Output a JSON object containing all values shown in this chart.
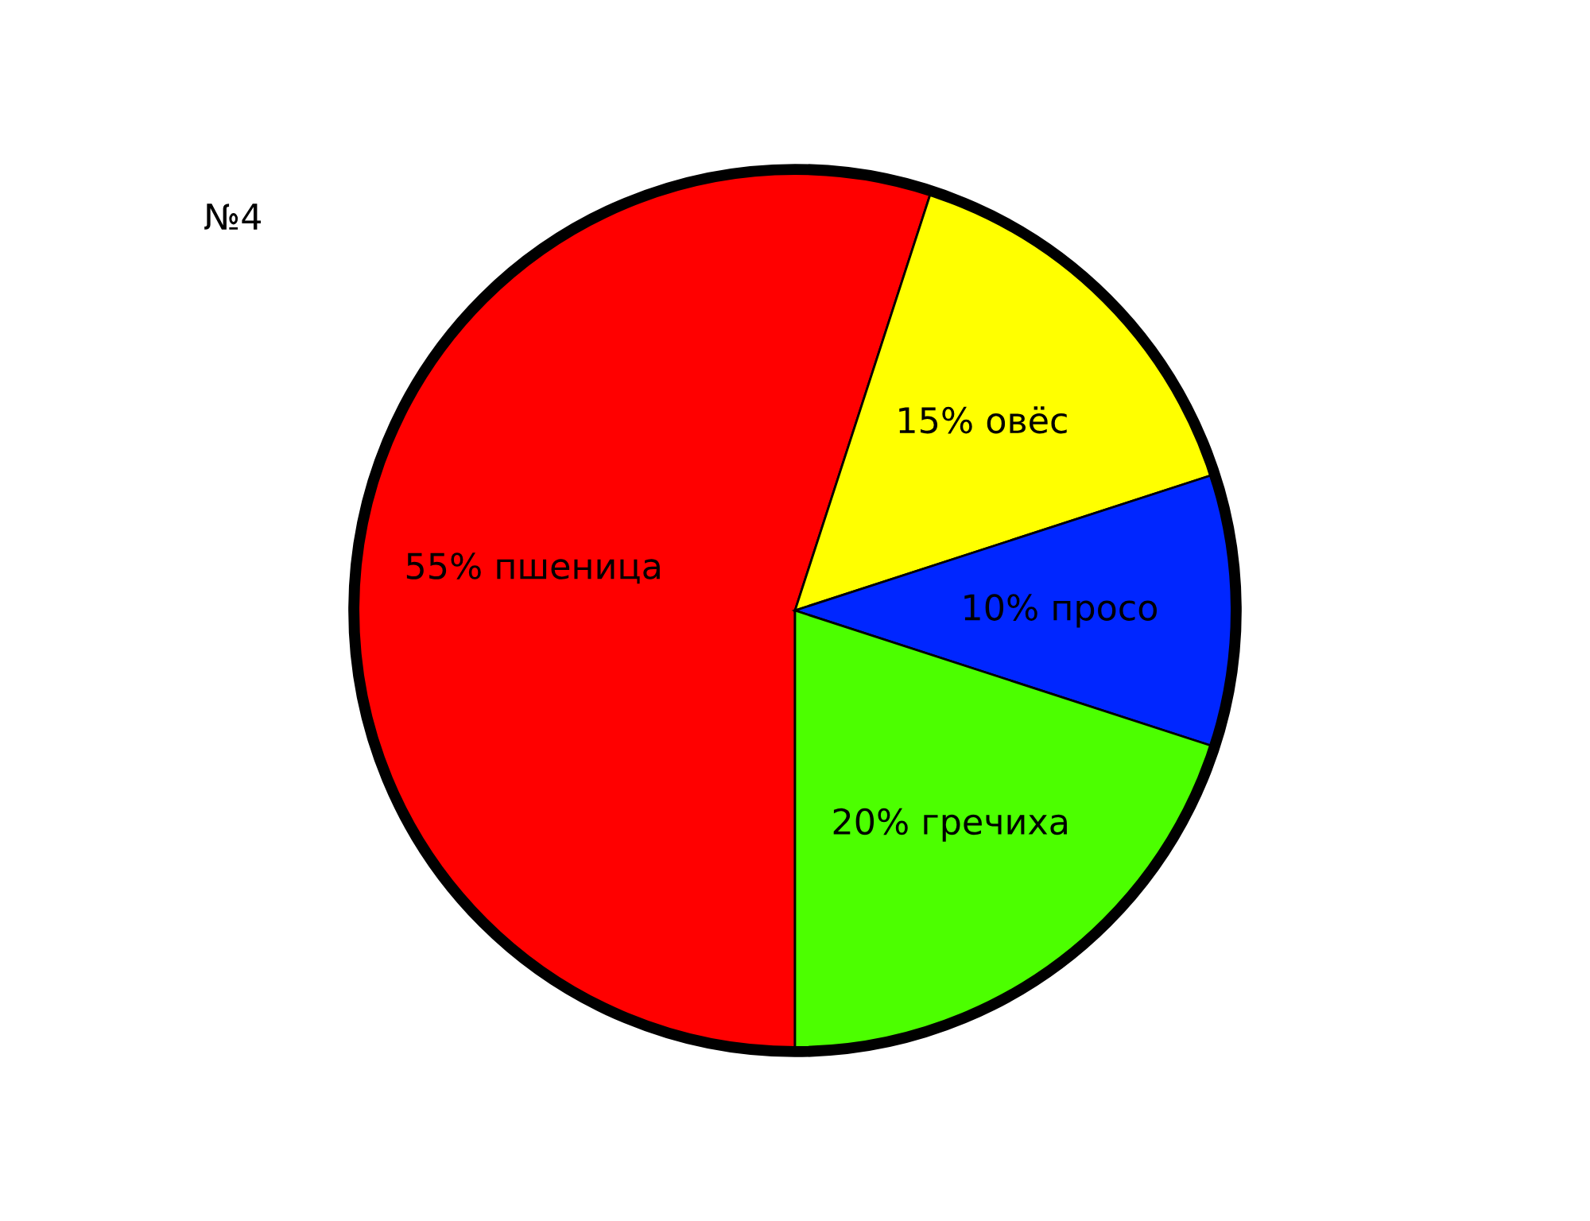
{
  "chart_data": {
    "type": "pie",
    "title": "№4",
    "categories": [
      "55% пшеница",
      "15% овёс",
      "10% просо",
      "20% гречиха"
    ],
    "values": [
      55,
      15,
      10,
      20
    ],
    "colors": [
      "#ff0000",
      "#ffff00",
      "#0026ff",
      "#4cff00"
    ],
    "legend": false
  }
}
